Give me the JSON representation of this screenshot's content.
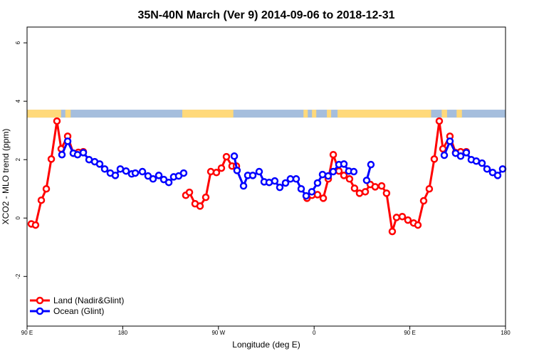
{
  "chart_data": {
    "type": "line",
    "title": "35N-40N March (Ver 9)   2014-09-06 to 2018-12-31",
    "xlabel": "Longitude (deg E)",
    "ylabel": "XCO2 - MLO trend (ppm)",
    "xlim": [
      90,
      540
    ],
    "ylim": [
      -3.7,
      6.54
    ],
    "x_ticks": [
      {
        "value": 90,
        "label": "90 E"
      },
      {
        "value": 180,
        "label": "180"
      },
      {
        "value": 270,
        "label": "90 W"
      },
      {
        "value": 360,
        "label": "0"
      },
      {
        "value": 450,
        "label": "90 E"
      },
      {
        "value": 540,
        "label": "180"
      }
    ],
    "y_ticks": [
      {
        "value": -2,
        "label": "-2"
      },
      {
        "value": 0,
        "label": "0"
      },
      {
        "value": 2,
        "label": "2"
      },
      {
        "value": 4,
        "label": "4"
      },
      {
        "value": 6,
        "label": "6"
      }
    ],
    "grid": false,
    "legend_position": "bottom-left",
    "surface_strip": {
      "ymin": 3.44,
      "ymax": 3.71,
      "land_color": "#FFD97A",
      "ocean_color": "#A5BEDD",
      "land_ranges": [
        [
          90,
          122
        ],
        [
          126,
          131
        ],
        [
          236,
          284
        ],
        [
          350,
          354
        ],
        [
          358,
          362
        ],
        [
          372,
          376
        ],
        [
          382,
          470
        ],
        [
          480,
          485
        ],
        [
          494,
          499
        ]
      ]
    },
    "series": [
      {
        "name": "Land (Nadir&Glint)",
        "color": "#FF0000",
        "segments": [
          [
            [
              94.0,
              -0.2
            ],
            [
              98.0,
              -0.24
            ],
            [
              103.4,
              0.61
            ],
            [
              108.1,
              1.0
            ],
            [
              112.8,
              2.02
            ],
            [
              118.1,
              3.32
            ],
            [
              122.1,
              2.37
            ],
            [
              128.2,
              2.8
            ],
            [
              133.5,
              2.22
            ],
            [
              138.2,
              2.25
            ],
            [
              142.9,
              2.27
            ]
          ],
          [
            [
              239.3,
              0.78
            ],
            [
              242.7,
              0.88
            ],
            [
              248.0,
              0.49
            ],
            [
              252.7,
              0.41
            ],
            [
              258.1,
              0.71
            ],
            [
              262.8,
              1.59
            ],
            [
              268.1,
              1.56
            ],
            [
              272.8,
              1.71
            ],
            [
              277.5,
              2.1
            ],
            [
              282.8,
              1.78
            ],
            [
              286.9,
              1.78
            ]
          ],
          [
            [
              353.3,
              0.68
            ],
            [
              358.0,
              0.78
            ],
            [
              363.2,
              0.8
            ],
            [
              368.6,
              0.68
            ],
            [
              373.3,
              1.34
            ],
            [
              378.0,
              2.17
            ],
            [
              383.3,
              1.61
            ],
            [
              388.0,
              1.46
            ],
            [
              393.3,
              1.34
            ],
            [
              398.0,
              1.02
            ],
            [
              402.7,
              0.85
            ],
            [
              408.1,
              0.9
            ],
            [
              412.8,
              1.15
            ],
            [
              417.4,
              1.07
            ],
            [
              423.5,
              1.1
            ],
            [
              428.1,
              0.85
            ],
            [
              433.5,
              -0.46
            ],
            [
              437.5,
              0.02
            ],
            [
              442.9,
              0.05
            ],
            [
              448.2,
              -0.07
            ],
            [
              453.6,
              -0.17
            ],
            [
              457.6,
              -0.24
            ],
            [
              463.0,
              0.59
            ],
            [
              468.3,
              1.0
            ],
            [
              473.0,
              2.02
            ],
            [
              477.7,
              3.32
            ],
            [
              481.1,
              2.37
            ],
            [
              487.7,
              2.8
            ],
            [
              493.1,
              2.24
            ],
            [
              497.8,
              2.27
            ],
            [
              503.1,
              2.27
            ]
          ]
        ]
      },
      {
        "name": "Ocean (Glint)",
        "color": "#0000FF",
        "segments": [
          [
            [
              122.8,
              2.17
            ],
            [
              128.2,
              2.63
            ],
            [
              133.5,
              2.22
            ],
            [
              137.5,
              2.17
            ],
            [
              142.9,
              2.24
            ],
            [
              148.3,
              2.0
            ],
            [
              153.6,
              1.93
            ],
            [
              158.3,
              1.85
            ],
            [
              163.0,
              1.68
            ],
            [
              168.3,
              1.54
            ],
            [
              173.0,
              1.46
            ],
            [
              177.7,
              1.68
            ],
            [
              183.1,
              1.61
            ],
            [
              188.4,
              1.51
            ],
            [
              191.8,
              1.54
            ],
            [
              198.5,
              1.59
            ],
            [
              203.8,
              1.44
            ],
            [
              208.5,
              1.34
            ],
            [
              213.9,
              1.46
            ],
            [
              218.6,
              1.32
            ],
            [
              223.3,
              1.22
            ],
            [
              227.9,
              1.41
            ],
            [
              232.6,
              1.44
            ],
            [
              237.3,
              1.54
            ]
          ],
          [
            [
              284.9,
              2.12
            ],
            [
              287.5,
              1.63
            ],
            [
              293.6,
              1.1
            ],
            [
              297.6,
              1.46
            ],
            [
              302.3,
              1.46
            ],
            [
              308.3,
              1.59
            ],
            [
              313.0,
              1.24
            ],
            [
              317.7,
              1.22
            ],
            [
              323.0,
              1.27
            ],
            [
              327.7,
              1.05
            ],
            [
              333.1,
              1.2
            ],
            [
              337.7,
              1.34
            ],
            [
              343.1,
              1.34
            ],
            [
              347.8,
              1.0
            ],
            [
              352.5,
              0.76
            ],
            [
              357.8,
              0.9
            ],
            [
              363.2,
              1.2
            ],
            [
              367.9,
              1.49
            ],
            [
              373.2,
              1.44
            ],
            [
              377.9,
              1.59
            ],
            [
              383.3,
              1.83
            ],
            [
              388.0,
              1.85
            ],
            [
              392.6,
              1.61
            ],
            [
              397.3,
              1.59
            ]
          ],
          [
            [
              409.4,
              1.29
            ],
            [
              413.4,
              1.83
            ]
          ],
          [
            [
              482.4,
              2.15
            ],
            [
              487.7,
              2.63
            ],
            [
              493.1,
              2.22
            ],
            [
              497.8,
              2.12
            ],
            [
              503.1,
              2.24
            ],
            [
              507.8,
              2.0
            ],
            [
              512.5,
              1.95
            ],
            [
              517.9,
              1.88
            ],
            [
              522.6,
              1.68
            ],
            [
              527.9,
              1.56
            ],
            [
              532.6,
              1.46
            ],
            [
              537.3,
              1.68
            ]
          ]
        ]
      }
    ]
  }
}
